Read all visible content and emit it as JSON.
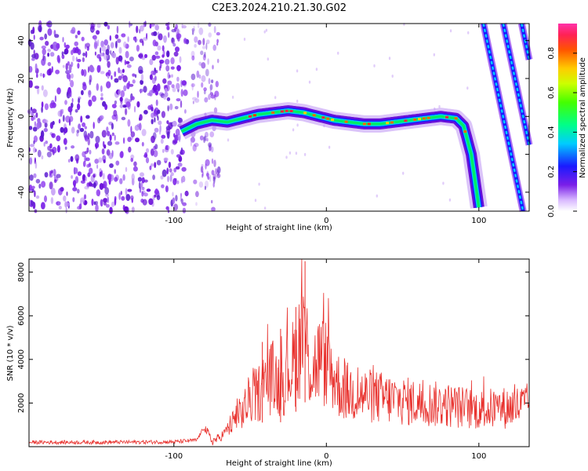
{
  "title": "C2E3.2024.210.21.30.G02",
  "colors": {
    "snr_line": "#e8302c",
    "frame": "#000000"
  },
  "chart_data": [
    {
      "type": "heatmap",
      "xlabel": "Height of straight line (km)",
      "ylabel": "Frequency (Hz)",
      "xlim": [
        -195,
        133
      ],
      "ylim": [
        -50,
        49
      ],
      "x_ticks": [
        -100,
        0,
        100
      ],
      "y_ticks": [
        -40,
        -20,
        0,
        20,
        40
      ],
      "colorbar": {
        "label": "Normalized spectral amplitude",
        "ticks": [
          0.0,
          0.2,
          0.4,
          0.6,
          0.8
        ],
        "range": [
          0,
          0.95
        ]
      },
      "main_trace": {
        "x": [
          -95,
          -85,
          -75,
          -65,
          -55,
          -45,
          -35,
          -25,
          -15,
          -5,
          5,
          15,
          25,
          35,
          45,
          55,
          65,
          75,
          85,
          90,
          95,
          100
        ],
        "y": [
          -8,
          -4,
          -2,
          -3,
          -1,
          1,
          2,
          3,
          2,
          0,
          -2,
          -3,
          -4,
          -4,
          -3,
          -2,
          -1,
          0,
          -1,
          -5,
          -20,
          -48
        ]
      },
      "diagonal_traces": [
        {
          "x": [
            103,
            129
          ],
          "y": [
            49,
            -50
          ]
        },
        {
          "x": [
            116,
            133
          ],
          "y": [
            49,
            -15
          ]
        },
        {
          "x": [
            128,
            133
          ],
          "y": [
            49,
            30
          ]
        }
      ],
      "noise_region_x": [
        -195,
        -70
      ]
    },
    {
      "type": "line",
      "xlabel": "Height of straight line (km)",
      "ylabel": "SNR (10 * v/v)",
      "xlim": [
        -195,
        133
      ],
      "ylim": [
        0,
        8600
      ],
      "x_ticks": [
        -100,
        0,
        100
      ],
      "y_ticks": [
        2000,
        4000,
        6000,
        8000
      ],
      "series": [
        {
          "x": [
            -195,
            -150,
            -100,
            -85,
            -80,
            -75,
            -70,
            -60,
            -55,
            -50,
            -45,
            -40,
            -35,
            -30,
            -25,
            -20,
            -15,
            -10,
            -5,
            0,
            10,
            20,
            40,
            60,
            80,
            100,
            120,
            133
          ],
          "y": [
            200,
            200,
            220,
            300,
            900,
            250,
            400,
            1200,
            1600,
            2200,
            2400,
            3000,
            3200,
            2800,
            3500,
            4000,
            5500,
            3400,
            4000,
            3800,
            2600,
            2400,
            2200,
            2000,
            1900,
            1700,
            1800,
            1900
          ],
          "spikes": [
            {
              "x": -14,
              "y": 8500
            },
            {
              "x": -20,
              "y": 6400
            },
            {
              "x": -30,
              "y": 5400
            },
            {
              "x": -42,
              "y": 4800
            }
          ]
        }
      ]
    }
  ]
}
